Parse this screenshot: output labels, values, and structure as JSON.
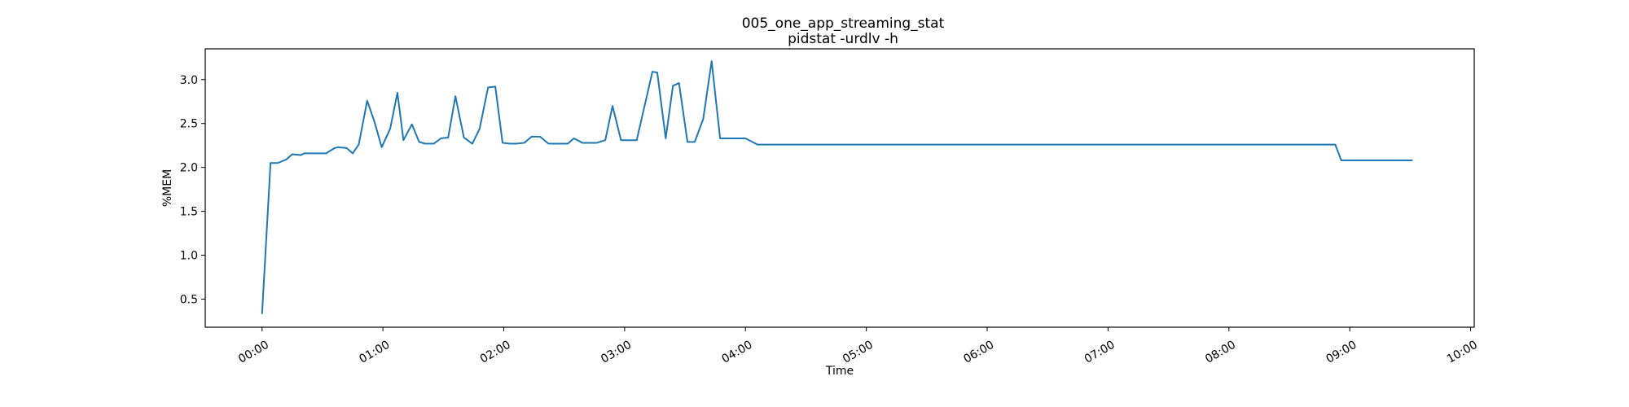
{
  "chart_data": {
    "type": "line",
    "title": "005_one_app_streaming_stat",
    "subtitle": "pidstat -urdlv -h",
    "xlabel": "Time",
    "ylabel": "%MEM",
    "x_unit": "hours",
    "xlim": [
      -0.47,
      10.03
    ],
    "ylim": [
      0.18,
      3.35
    ],
    "x_ticks": [
      {
        "value": 0,
        "label": "00:00"
      },
      {
        "value": 1,
        "label": "01:00"
      },
      {
        "value": 2,
        "label": "02:00"
      },
      {
        "value": 3,
        "label": "03:00"
      },
      {
        "value": 4,
        "label": "04:00"
      },
      {
        "value": 5,
        "label": "05:00"
      },
      {
        "value": 6,
        "label": "06:00"
      },
      {
        "value": 7,
        "label": "07:00"
      },
      {
        "value": 8,
        "label": "08:00"
      },
      {
        "value": 9,
        "label": "09:00"
      },
      {
        "value": 10,
        "label": "10:00"
      }
    ],
    "y_ticks": [
      {
        "value": 0.5,
        "label": "0.5"
      },
      {
        "value": 1.0,
        "label": "1.0"
      },
      {
        "value": 1.5,
        "label": "1.5"
      },
      {
        "value": 2.0,
        "label": "2.0"
      },
      {
        "value": 2.5,
        "label": "2.5"
      },
      {
        "value": 3.0,
        "label": "3.0"
      }
    ],
    "grid": false,
    "series": [
      {
        "color": "#1f77b4",
        "x": [
          0.0,
          0.07,
          0.13,
          0.2,
          0.25,
          0.32,
          0.35,
          0.42,
          0.48,
          0.53,
          0.6,
          0.63,
          0.7,
          0.75,
          0.8,
          0.87,
          0.93,
          0.99,
          1.06,
          1.12,
          1.17,
          1.24,
          1.3,
          1.35,
          1.42,
          1.48,
          1.54,
          1.6,
          1.67,
          1.74,
          1.8,
          1.87,
          1.93,
          1.99,
          2.05,
          2.1,
          2.17,
          2.23,
          2.3,
          2.37,
          2.43,
          2.5,
          2.53,
          2.58,
          2.65,
          2.73,
          2.77,
          2.84,
          2.9,
          2.97,
          3.03,
          3.1,
          3.23,
          3.27,
          3.34,
          3.4,
          3.45,
          3.52,
          3.58,
          3.65,
          3.72,
          3.79,
          3.85,
          3.92,
          4.0,
          4.1,
          5.0,
          6.0,
          7.0,
          8.0,
          8.88,
          8.93,
          9.0,
          9.52
        ],
        "y": [
          0.33,
          2.05,
          2.05,
          2.09,
          2.15,
          2.14,
          2.16,
          2.16,
          2.16,
          2.16,
          2.22,
          2.23,
          2.22,
          2.16,
          2.26,
          2.76,
          2.52,
          2.23,
          2.44,
          2.85,
          2.31,
          2.49,
          2.29,
          2.27,
          2.27,
          2.33,
          2.34,
          2.81,
          2.34,
          2.27,
          2.44,
          2.91,
          2.92,
          2.28,
          2.27,
          2.27,
          2.28,
          2.35,
          2.35,
          2.27,
          2.27,
          2.27,
          2.27,
          2.33,
          2.28,
          2.28,
          2.28,
          2.31,
          2.7,
          2.31,
          2.31,
          2.31,
          3.09,
          3.08,
          2.33,
          2.93,
          2.96,
          2.29,
          2.29,
          2.55,
          3.21,
          2.33,
          2.33,
          2.33,
          2.33,
          2.26,
          2.26,
          2.26,
          2.26,
          2.26,
          2.26,
          2.08,
          2.08,
          2.08
        ]
      }
    ]
  }
}
